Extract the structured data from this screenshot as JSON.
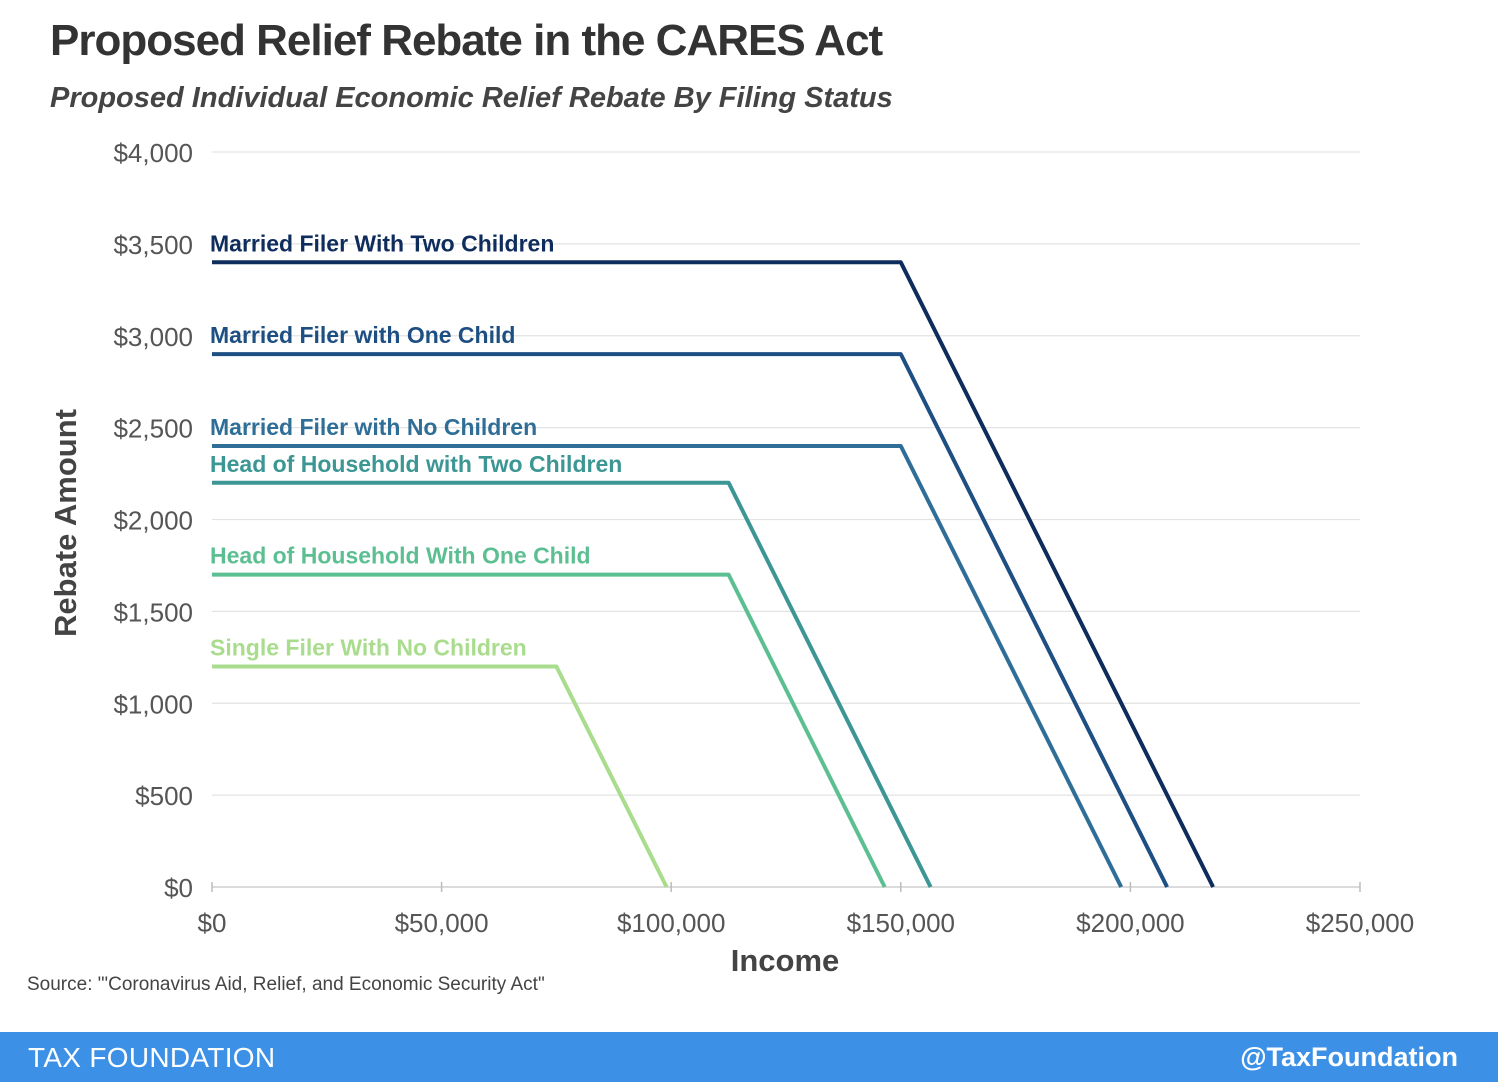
{
  "header": {
    "title": "Proposed Relief Rebate in the CARES Act",
    "subtitle": "Proposed Individual Economic Relief Rebate By Filing Status"
  },
  "source_note": "Source: \"'Coronavirus Aid, Relief, and Economic Security Act\"",
  "footer": {
    "brand": "TAX FOUNDATION",
    "handle": "@TaxFoundation",
    "color": "#3c91e6"
  },
  "chart_data": {
    "type": "line",
    "xlabel": "Income",
    "ylabel": "Rebate Amount",
    "xlim": [
      0,
      250000
    ],
    "ylim": [
      0,
      4000
    ],
    "x_ticks": [
      0,
      50000,
      100000,
      150000,
      200000,
      250000
    ],
    "x_tick_labels": [
      "$0",
      "$50,000",
      "$100,000",
      "$150,000",
      "$200,000",
      "$250,000"
    ],
    "y_ticks": [
      0,
      500,
      1000,
      1500,
      2000,
      2500,
      3000,
      3500,
      4000
    ],
    "y_tick_labels": [
      "$0",
      "$500",
      "$1,000",
      "$1,500",
      "$2,000",
      "$2,500",
      "$3,000",
      "$3,500",
      "$4,000"
    ],
    "grid": "horizontal",
    "legend": "inline labels above each line",
    "series": [
      {
        "name": "Married Filer With Two Children",
        "color": "#0f2d5c",
        "points": [
          [
            0,
            3400
          ],
          [
            150000,
            3400
          ],
          [
            218000,
            0
          ]
        ]
      },
      {
        "name": "Married Filer with One Child",
        "color": "#1e4f82",
        "points": [
          [
            0,
            2900
          ],
          [
            150000,
            2900
          ],
          [
            208000,
            0
          ]
        ]
      },
      {
        "name": "Married Filer with No Children",
        "color": "#2f6e96",
        "points": [
          [
            0,
            2400
          ],
          [
            150000,
            2400
          ],
          [
            198000,
            0
          ]
        ]
      },
      {
        "name": "Head of Household with Two Children",
        "color": "#3b9694",
        "points": [
          [
            0,
            2200
          ],
          [
            112500,
            2200
          ],
          [
            156500,
            0
          ]
        ]
      },
      {
        "name": "Head of Household With One Child",
        "color": "#5cbf91",
        "points": [
          [
            0,
            1700
          ],
          [
            112500,
            1700
          ],
          [
            146500,
            0
          ]
        ]
      },
      {
        "name": "Single Filer With No Children",
        "color": "#a9dd8d",
        "points": [
          [
            0,
            1200
          ],
          [
            75000,
            1200
          ],
          [
            99000,
            0
          ]
        ]
      }
    ]
  }
}
